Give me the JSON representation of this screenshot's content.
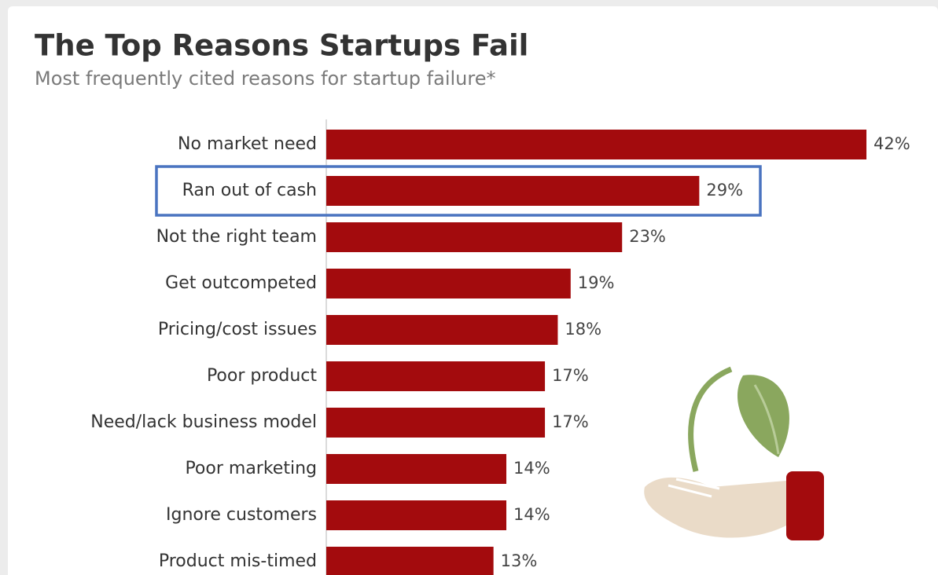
{
  "chart_data": {
    "type": "bar",
    "orientation": "horizontal",
    "title": "The Top Reasons Startups Fail",
    "subtitle": "Most frequently cited reasons for startup failure*",
    "categories": [
      "No market need",
      "Ran out of cash",
      "Not the right team",
      "Get outcompeted",
      "Pricing/cost issues",
      "Poor product",
      "Need/lack business model",
      "Poor marketing",
      "Ignore customers",
      "Product mis-timed"
    ],
    "values": [
      42,
      29,
      23,
      19,
      18,
      17,
      17,
      14,
      14,
      13
    ],
    "value_labels": [
      "42%",
      "29%",
      "23%",
      "19%",
      "18%",
      "17%",
      "17%",
      "14%",
      "14%",
      "13%"
    ],
    "color": "#a30b0d"
  }
}
